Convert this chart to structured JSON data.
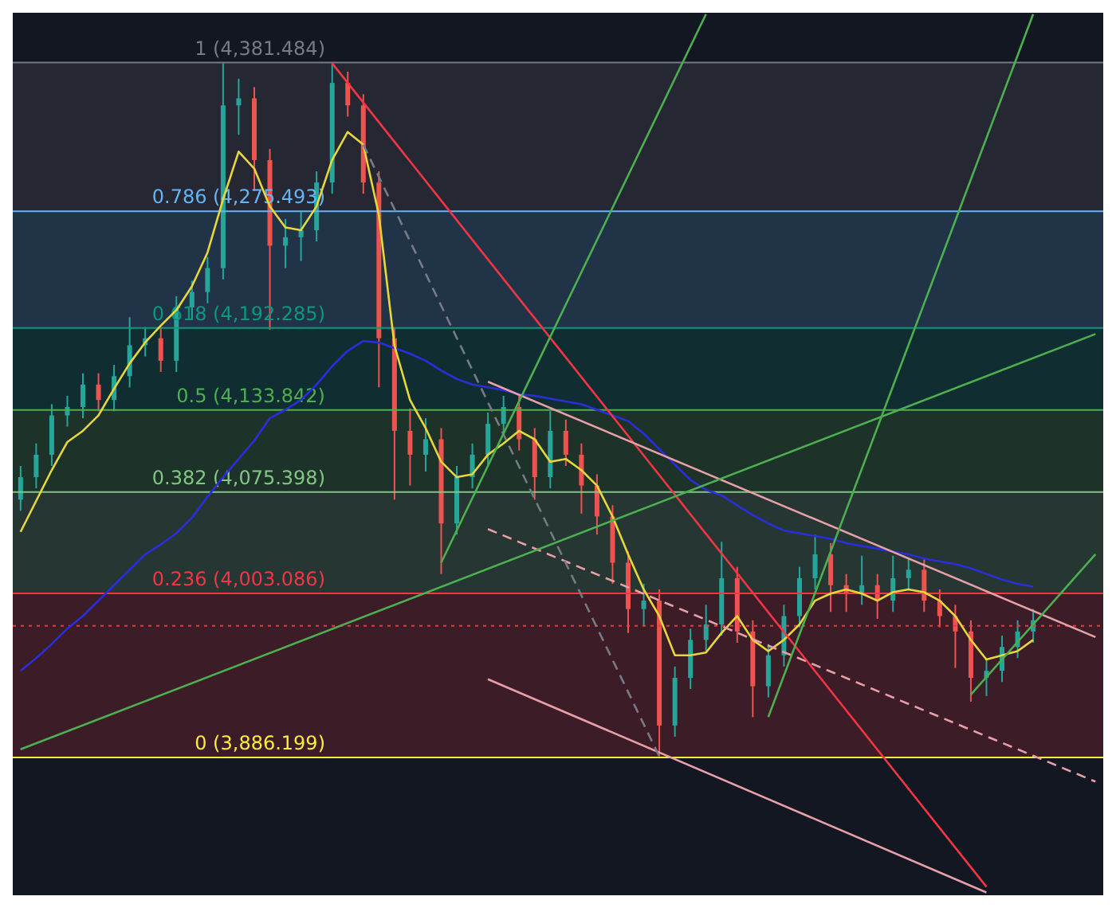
{
  "chart_data": {
    "type": "candlestick",
    "tick_labels": false,
    "marker": "none",
    "ylim": [
      3788,
      4417
    ],
    "categories": [
      null,
      null,
      null,
      null,
      null,
      null,
      null,
      null,
      null,
      null,
      null,
      null,
      null,
      null,
      null,
      null,
      null,
      null,
      null,
      null,
      null,
      null,
      null,
      null,
      null,
      null,
      null,
      null,
      null,
      null,
      null,
      null,
      null,
      null,
      null,
      null,
      null,
      null,
      null,
      null,
      null,
      null,
      null,
      null,
      null,
      null,
      null,
      null,
      null,
      null,
      null,
      null,
      null,
      null,
      null,
      null,
      null,
      null,
      null,
      null,
      null,
      null,
      null,
      null,
      null,
      null,
      null,
      null,
      null,
      null
    ],
    "bands": [
      {
        "axis": "y",
        "from": 4275.493,
        "to": 4381.484,
        "color": "#787b86"
      },
      {
        "axis": "y",
        "from": 4192.285,
        "to": 4275.493,
        "color": "#64b5f6"
      },
      {
        "axis": "y",
        "from": 4133.842,
        "to": 4192.285,
        "color": "#089981"
      },
      {
        "axis": "y",
        "from": 4075.398,
        "to": 4133.842,
        "color": "#4caf50"
      },
      {
        "axis": "y",
        "from": 4003.086,
        "to": 4075.398,
        "color": "#81c784"
      },
      {
        "axis": "y",
        "from": 3886.199,
        "to": 4003.086,
        "color": "#f23645"
      }
    ],
    "ref_lines": [
      {
        "axis": "y",
        "value": 4381.484,
        "label": "1 (4,381.484)",
        "color": "#787b86"
      },
      {
        "axis": "y",
        "value": 4275.493,
        "label": "0.786 (4,275.493)",
        "color": "#64b5f6"
      },
      {
        "axis": "y",
        "value": 4192.285,
        "label": "0.618 (4,192.285)",
        "color": "#089981"
      },
      {
        "axis": "y",
        "value": 4133.842,
        "label": "0.5 (4,133.842)",
        "color": "#4caf50"
      },
      {
        "axis": "y",
        "value": 4075.398,
        "label": "0.382 (4,075.398)",
        "color": "#81c784"
      },
      {
        "axis": "y",
        "value": 4003.086,
        "label": "0.236 (4,003.086)",
        "color": "#f23645"
      },
      {
        "axis": "y",
        "value": 3886.199,
        "label": "0 (3,886.199)",
        "color": "#ffeb3b"
      },
      {
        "axis": "y",
        "value": 3980,
        "color": "#f23645",
        "line_style": "dotted"
      }
    ],
    "series": [
      {
        "type": "line",
        "color": "#2a2ed8",
        "values": [
          3948,
          3957,
          3967,
          3978,
          3987,
          3998,
          4009,
          4020,
          4031,
          4038,
          4046,
          4057,
          4072,
          4086,
          4099,
          4112,
          4128,
          4134,
          4141,
          4152,
          4165,
          4176,
          4183,
          4182,
          4178,
          4174,
          4169,
          4162,
          4156,
          4152,
          4150,
          4148,
          4145,
          4144,
          4142,
          4140,
          4138,
          4134,
          4130,
          4126,
          4117,
          4106,
          4095,
          4084,
          4077,
          4073,
          4066,
          4059,
          4053,
          4048,
          4046,
          4044,
          4042,
          4039,
          4037,
          4035,
          4033,
          4031,
          4028,
          4026,
          4024,
          4021,
          4017,
          4013,
          4010,
          4008,
          null,
          null,
          null,
          null
        ]
      },
      {
        "type": "line",
        "color": "#e8d73a",
        "values": [
          4047,
          4069,
          4091,
          4111,
          4119,
          4130,
          4149,
          4167,
          4182,
          4194,
          4205,
          4222,
          4246,
          4284,
          4318,
          4306,
          4279,
          4264,
          4262,
          4279,
          4312,
          4332,
          4323,
          4273,
          4180,
          4141,
          4121,
          4097,
          4086,
          4088,
          4102,
          4110,
          4119,
          4113,
          4097,
          4099,
          4091,
          4080,
          4058,
          4031,
          4006,
          3987,
          3959,
          3959,
          3961,
          3975,
          3987,
          3970,
          3962,
          3970,
          3981,
          3998,
          4003,
          4006,
          4003,
          3998,
          4004,
          4006,
          4004,
          3998,
          3987,
          3970,
          3956,
          3959,
          3962,
          3970,
          null,
          null,
          null,
          null
        ]
      },
      {
        "type": "line",
        "color": "#f23645",
        "values": [
          null,
          null,
          null,
          null,
          null,
          null,
          null,
          null,
          null,
          null,
          null,
          null,
          null,
          null,
          null,
          null,
          null,
          null,
          null,
          null,
          4381,
          null,
          null,
          null,
          null,
          null,
          null,
          null,
          null,
          null,
          null,
          null,
          null,
          null,
          null,
          null,
          null,
          null,
          null,
          null,
          null,
          null,
          null,
          null,
          null,
          null,
          null,
          null,
          null,
          null,
          null,
          null,
          null,
          null,
          null,
          null,
          null,
          null,
          null,
          null,
          null,
          null,
          3794,
          null,
          null,
          null,
          null,
          null,
          null,
          null
        ]
      },
      {
        "type": "line",
        "color": "#e8a0a8",
        "values": [
          null,
          null,
          null,
          null,
          null,
          null,
          null,
          null,
          null,
          null,
          null,
          null,
          null,
          null,
          null,
          null,
          null,
          null,
          null,
          null,
          null,
          null,
          null,
          null,
          null,
          null,
          null,
          null,
          null,
          null,
          4154,
          null,
          null,
          null,
          null,
          null,
          null,
          null,
          null,
          null,
          null,
          null,
          null,
          null,
          null,
          null,
          null,
          null,
          null,
          null,
          null,
          null,
          null,
          null,
          null,
          null,
          null,
          null,
          null,
          null,
          null,
          null,
          null,
          null,
          null,
          null,
          null,
          null,
          null,
          3972
        ]
      },
      {
        "type": "line",
        "color": "#e8a0a8",
        "values": [
          null,
          null,
          null,
          null,
          null,
          null,
          null,
          null,
          null,
          null,
          null,
          null,
          null,
          null,
          null,
          null,
          null,
          null,
          null,
          null,
          null,
          null,
          null,
          null,
          null,
          null,
          null,
          null,
          null,
          null,
          3942,
          null,
          null,
          null,
          null,
          null,
          null,
          null,
          null,
          null,
          null,
          null,
          null,
          null,
          null,
          null,
          null,
          null,
          null,
          null,
          null,
          null,
          null,
          null,
          null,
          null,
          null,
          null,
          null,
          null,
          null,
          null,
          3790,
          null,
          null,
          null,
          null,
          null,
          null,
          null
        ]
      },
      {
        "type": "line",
        "color": "#e8a0a8",
        "line_style": "dashed",
        "values": [
          null,
          null,
          null,
          null,
          null,
          null,
          null,
          null,
          null,
          null,
          null,
          null,
          null,
          null,
          null,
          null,
          null,
          null,
          null,
          null,
          null,
          null,
          null,
          null,
          null,
          null,
          null,
          null,
          null,
          null,
          4049,
          null,
          null,
          null,
          null,
          null,
          null,
          null,
          null,
          null,
          null,
          null,
          null,
          null,
          null,
          null,
          null,
          null,
          null,
          null,
          null,
          null,
          null,
          null,
          null,
          null,
          null,
          null,
          null,
          null,
          null,
          null,
          null,
          null,
          null,
          null,
          null,
          null,
          null,
          3869
        ]
      },
      {
        "type": "line",
        "color": "#787b86",
        "line_style": "dashed",
        "values": [
          null,
          null,
          null,
          null,
          null,
          null,
          null,
          null,
          null,
          null,
          null,
          null,
          null,
          null,
          null,
          null,
          null,
          null,
          null,
          null,
          null,
          null,
          4323,
          null,
          null,
          null,
          null,
          null,
          null,
          null,
          null,
          null,
          null,
          null,
          null,
          null,
          null,
          null,
          null,
          null,
          null,
          3887,
          null,
          null,
          null,
          null,
          null,
          null,
          null,
          null,
          null,
          null,
          null,
          null,
          null,
          null,
          null,
          null,
          null,
          null,
          null,
          null,
          null,
          null,
          null,
          null,
          null,
          null,
          null,
          null
        ]
      },
      {
        "type": "line",
        "color": "#4caf50",
        "values": [
          3892,
          null,
          null,
          null,
          null,
          null,
          null,
          null,
          null,
          null,
          null,
          null,
          null,
          null,
          null,
          null,
          null,
          null,
          null,
          null,
          null,
          null,
          null,
          null,
          null,
          null,
          null,
          null,
          null,
          null,
          null,
          null,
          null,
          null,
          null,
          null,
          null,
          null,
          null,
          null,
          null,
          null,
          null,
          null,
          null,
          null,
          null,
          null,
          null,
          null,
          null,
          null,
          null,
          null,
          null,
          null,
          null,
          null,
          null,
          null,
          null,
          null,
          null,
          null,
          null,
          null,
          null,
          null,
          null,
          4188
        ]
      },
      {
        "type": "line",
        "color": "#4caf50",
        "values": [
          null,
          null,
          null,
          null,
          null,
          null,
          null,
          null,
          null,
          null,
          null,
          null,
          null,
          null,
          null,
          null,
          null,
          null,
          null,
          null,
          null,
          null,
          null,
          null,
          null,
          null,
          null,
          4025,
          null,
          null,
          null,
          null,
          null,
          null,
          null,
          null,
          null,
          null,
          null,
          null,
          null,
          null,
          null,
          null,
          4416,
          null,
          null,
          null,
          null,
          null,
          null,
          null,
          null,
          null,
          null,
          null,
          null,
          null,
          null,
          null,
          null,
          null,
          null,
          null,
          null,
          null,
          null,
          null,
          null,
          null
        ]
      },
      {
        "type": "line",
        "color": "#4caf50",
        "values": [
          null,
          null,
          null,
          null,
          null,
          null,
          null,
          null,
          null,
          null,
          null,
          null,
          null,
          null,
          null,
          null,
          null,
          null,
          null,
          null,
          null,
          null,
          null,
          null,
          null,
          null,
          null,
          null,
          null,
          null,
          null,
          null,
          null,
          null,
          null,
          null,
          null,
          null,
          null,
          null,
          null,
          null,
          null,
          null,
          null,
          null,
          null,
          null,
          3915,
          null,
          null,
          null,
          null,
          null,
          null,
          null,
          null,
          null,
          null,
          null,
          null,
          null,
          null,
          null,
          null,
          4416,
          null,
          null,
          null,
          null
        ]
      },
      {
        "type": "line",
        "color": "#4caf50",
        "values": [
          null,
          null,
          null,
          null,
          null,
          null,
          null,
          null,
          null,
          null,
          null,
          null,
          null,
          null,
          null,
          null,
          null,
          null,
          null,
          null,
          null,
          null,
          null,
          null,
          null,
          null,
          null,
          null,
          null,
          null,
          null,
          null,
          null,
          null,
          null,
          null,
          null,
          null,
          null,
          null,
          null,
          null,
          null,
          null,
          null,
          null,
          null,
          null,
          null,
          null,
          null,
          null,
          null,
          null,
          null,
          null,
          null,
          null,
          null,
          null,
          null,
          3931,
          null,
          null,
          null,
          null,
          null,
          null,
          null,
          4031
        ]
      },
      {
        "colors": [
          "#26a69a",
          "#26a69a",
          "#26a69a",
          "#26a69a",
          "#26a69a",
          "#ef5350",
          "#26a69a",
          "#26a69a",
          "#26a69a",
          "#ef5350",
          "#26a69a",
          "#26a69a",
          "#26a69a",
          "#26a69a",
          "#26a69a",
          "#ef5350",
          "#ef5350",
          "#26a69a",
          "#26a69a",
          "#26a69a",
          "#26a69a",
          "#ef5350",
          "#ef5350",
          "#ef5350",
          "#ef5350",
          "#ef5350",
          "#26a69a",
          "#ef5350",
          "#26a69a",
          "#26a69a",
          "#26a69a",
          "#26a69a",
          "#ef5350",
          "#ef5350",
          "#26a69a",
          "#ef5350",
          "#ef5350",
          "#ef5350",
          "#ef5350",
          "#ef5350",
          "#26a69a",
          "#ef5350",
          "#26a69a",
          "#26a69a",
          "#26a69a",
          "#26a69a",
          "#ef5350",
          "#ef5350",
          "#26a69a",
          "#26a69a",
          "#26a69a",
          "#26a69a",
          "#ef5350",
          "#ef5350",
          "#26a69a",
          "#ef5350",
          "#26a69a",
          "#26a69a",
          "#ef5350",
          "#ef5350",
          "#ef5350",
          "#ef5350",
          "#26a69a",
          "#26a69a",
          "#26a69a",
          "#26a69a",
          null,
          null,
          null,
          null
        ],
        "ohlc": [
          [
            4070,
            4094,
            4062,
            4086
          ],
          [
            4086,
            4110,
            4078,
            4102
          ],
          [
            4102,
            4138,
            4094,
            4130
          ],
          [
            4130,
            4144,
            4122,
            4136
          ],
          [
            4136,
            4160,
            4128,
            4152
          ],
          [
            4152,
            4160,
            4133,
            4141
          ],
          [
            4141,
            4166,
            4133,
            4158
          ],
          [
            4158,
            4200,
            4150,
            4180
          ],
          [
            4180,
            4193,
            4172,
            4185
          ],
          [
            4185,
            4193,
            4161,
            4169
          ],
          [
            4169,
            4215,
            4161,
            4207
          ],
          [
            4207,
            4226,
            4199,
            4218
          ],
          [
            4218,
            4243,
            4210,
            4235
          ],
          [
            4235,
            4381,
            4227,
            4351
          ],
          [
            4351,
            4370,
            4330,
            4356
          ],
          [
            4356,
            4364,
            4290,
            4312
          ],
          [
            4312,
            4320,
            4191,
            4251
          ],
          [
            4251,
            4270,
            4235,
            4257
          ],
          [
            4257,
            4275,
            4240,
            4262
          ],
          [
            4262,
            4304,
            4254,
            4296
          ],
          [
            4296,
            4381,
            4288,
            4367
          ],
          [
            4367,
            4375,
            4343,
            4351
          ],
          [
            4351,
            4359,
            4288,
            4296
          ],
          [
            4296,
            4304,
            4150,
            4185
          ],
          [
            4185,
            4193,
            4070,
            4119
          ],
          [
            4119,
            4135,
            4080,
            4102
          ],
          [
            4102,
            4128,
            4090,
            4113
          ],
          [
            4113,
            4121,
            4017,
            4053
          ],
          [
            4053,
            4094,
            4045,
            4086
          ],
          [
            4086,
            4110,
            4078,
            4102
          ],
          [
            4102,
            4132,
            4094,
            4124
          ],
          [
            4124,
            4144,
            4116,
            4136
          ],
          [
            4136,
            4144,
            4105,
            4113
          ],
          [
            4113,
            4121,
            4070,
            4086
          ],
          [
            4086,
            4133,
            4078,
            4119
          ],
          [
            4119,
            4127,
            4094,
            4102
          ],
          [
            4102,
            4110,
            4060,
            4080
          ],
          [
            4080,
            4088,
            4045,
            4058
          ],
          [
            4058,
            4066,
            4010,
            4025
          ],
          [
            4025,
            4033,
            3975,
            3992
          ],
          [
            3992,
            4010,
            3980,
            3998
          ],
          [
            3998,
            4006,
            3887,
            3909
          ],
          [
            3909,
            3951,
            3901,
            3943
          ],
          [
            3943,
            3978,
            3935,
            3970
          ],
          [
            3970,
            3995,
            3962,
            3981
          ],
          [
            3981,
            4040,
            3973,
            4014
          ],
          [
            4014,
            4022,
            3968,
            3976
          ],
          [
            3976,
            3984,
            3915,
            3937
          ],
          [
            3937,
            3967,
            3929,
            3959
          ],
          [
            3959,
            3995,
            3951,
            3987
          ],
          [
            3987,
            4022,
            3979,
            4014
          ],
          [
            4014,
            4045,
            4006,
            4031
          ],
          [
            4031,
            4039,
            3990,
            4009
          ],
          [
            4009,
            4017,
            3990,
            4003
          ],
          [
            4003,
            4030,
            3995,
            4009
          ],
          [
            4009,
            4017,
            3985,
            3998
          ],
          [
            3998,
            4030,
            3990,
            4014
          ],
          [
            4014,
            4028,
            4006,
            4020
          ],
          [
            4020,
            4028,
            3990,
            3998
          ],
          [
            3998,
            4006,
            3979,
            3987
          ],
          [
            3987,
            3995,
            3950,
            3976
          ],
          [
            3976,
            3984,
            3926,
            3943
          ],
          [
            3943,
            3956,
            3930,
            3948
          ],
          [
            3948,
            3973,
            3940,
            3965
          ],
          [
            3965,
            3984,
            3957,
            3976
          ],
          [
            3976,
            3992,
            3968,
            3984
          ],
          null,
          null,
          null,
          null
        ]
      }
    ]
  }
}
